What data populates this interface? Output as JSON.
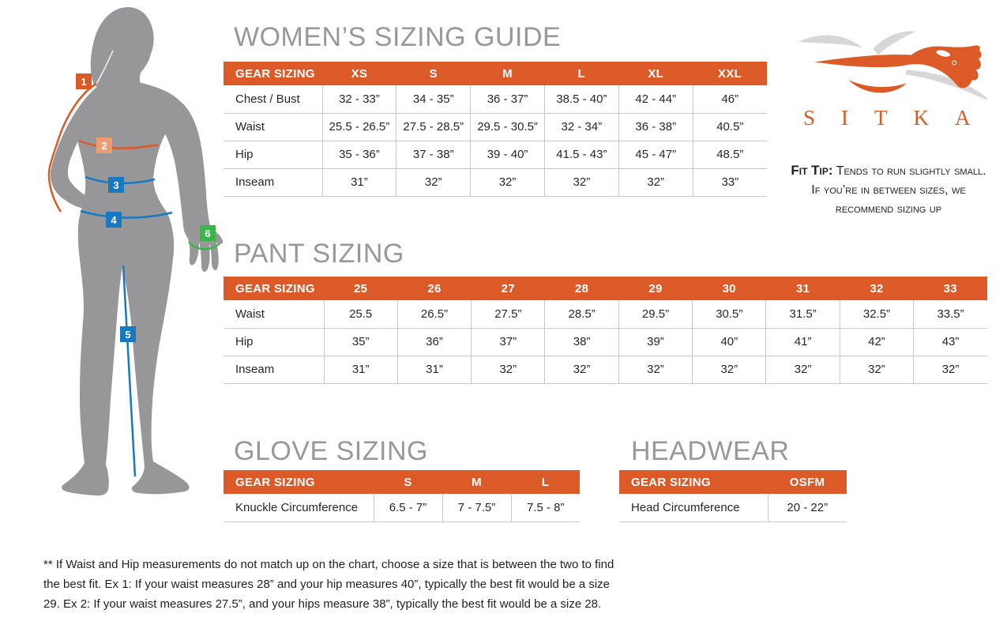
{
  "colors": {
    "orange": "#DC5A27",
    "salmon": "#EC9C70",
    "blue": "#1779BF",
    "green": "#3AB54A",
    "title-gray": "#98989C",
    "body-gray": "#97979A",
    "line-gray": "#C9C9C9"
  },
  "brand": {
    "logo_text": "SITKA"
  },
  "fit_tip": {
    "label": "Fit Tip:",
    "text": "Tends to run slightly small. If you’re in between sizes, we recommend sizing up"
  },
  "figure": {
    "markers": [
      {
        "label": "1",
        "color": "#DC5A27"
      },
      {
        "label": "2",
        "color": "#EC9C70"
      },
      {
        "label": "3",
        "color": "#1779BF"
      },
      {
        "label": "4",
        "color": "#1779BF"
      },
      {
        "label": "5",
        "color": "#1779BF"
      },
      {
        "label": "6",
        "color": "#3AB54A"
      }
    ]
  },
  "tables": {
    "womens": {
      "title": "WOMEN’S SIZING GUIDE",
      "header": [
        "GEAR SIZING",
        "XS",
        "S",
        "M",
        "L",
        "XL",
        "XXL"
      ],
      "rows": [
        [
          "Chest / Bust",
          "32 - 33”",
          "34 - 35”",
          "36 - 37”",
          "38.5 - 40”",
          "42 - 44”",
          "46”"
        ],
        [
          "Waist",
          "25.5 - 26.5”",
          "27.5 - 28.5”",
          "29.5 - 30.5”",
          "32 - 34”",
          "36 - 38”",
          "40.5”"
        ],
        [
          "Hip",
          "35 - 36”",
          "37 - 38”",
          "39 - 40”",
          "41.5 - 43”",
          "45 - 47”",
          "48.5”"
        ],
        [
          "Inseam",
          "31”",
          "32”",
          "32”",
          "32”",
          "32”",
          "33”"
        ]
      ]
    },
    "pant": {
      "title": "PANT SIZING",
      "header": [
        "GEAR SIZING",
        "25",
        "26",
        "27",
        "28",
        "29",
        "30",
        "31",
        "32",
        "33"
      ],
      "rows": [
        [
          "Waist",
          "25.5",
          "26.5”",
          "27.5”",
          "28.5”",
          "29.5”",
          "30.5”",
          "31.5”",
          "32.5”",
          "33.5”"
        ],
        [
          "Hip",
          "35”",
          "36”",
          "37”",
          "38”",
          "39”",
          "40”",
          "41”",
          "42”",
          "43”"
        ],
        [
          "Inseam",
          "31”",
          "31”",
          "32”",
          "32”",
          "32”",
          "32”",
          "32”",
          "32”",
          "32”"
        ]
      ]
    },
    "glove": {
      "title": "GLOVE SIZING",
      "header": [
        "GEAR SIZING",
        "S",
        "M",
        "L"
      ],
      "rows": [
        [
          "Knuckle Circumference",
          "6.5 - 7”",
          "7 - 7.5”",
          "7.5 - 8”"
        ]
      ]
    },
    "headwear": {
      "title": "HEADWEAR",
      "header": [
        "GEAR SIZING",
        "OSFM"
      ],
      "rows": [
        [
          "Head Circumference",
          "20 - 22”"
        ]
      ]
    }
  },
  "footnote": "** If Waist and Hip measurements do not match up on the chart, choose a size that is between the two to find the best fit. Ex 1: If your waist measures 28” and your hip measures 40”, typically the best fit would be a size 29. Ex 2: If your waist measures 27.5”, and your hips measure 38”, typically the best fit would be a size 28."
}
